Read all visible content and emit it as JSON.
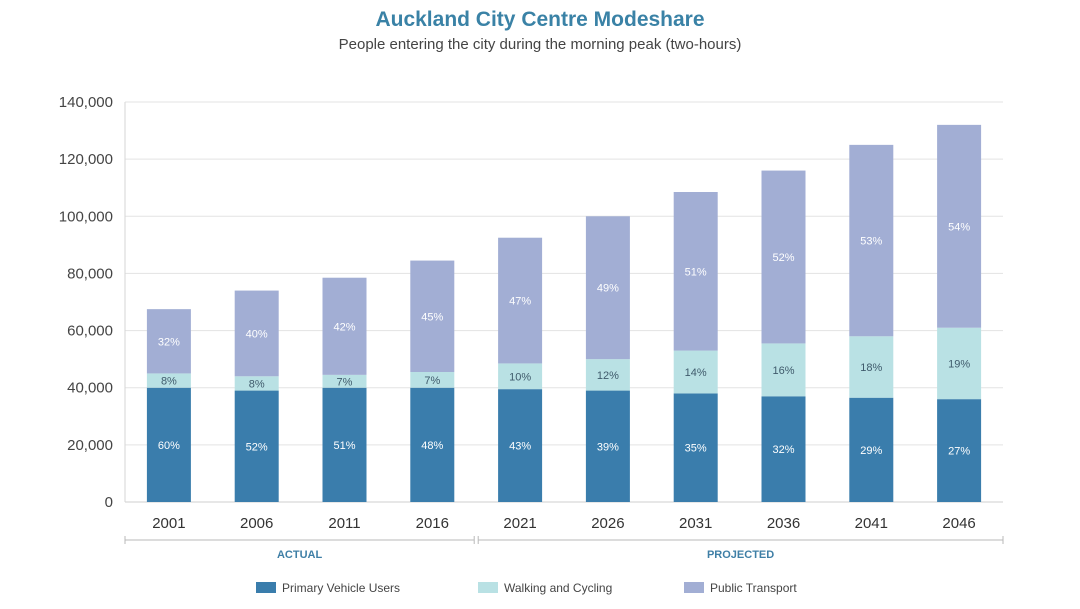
{
  "chart_data": {
    "type": "bar",
    "stacked": true,
    "title": "Auckland City Centre Modeshare",
    "subtitle": "People entering the city during the morning peak (two-hours)",
    "categories": [
      "2001",
      "2006",
      "2011",
      "2016",
      "2021",
      "2026",
      "2031",
      "2036",
      "2041",
      "2046"
    ],
    "ylim": [
      0,
      140000
    ],
    "yticks": [
      0,
      20000,
      40000,
      60000,
      80000,
      100000,
      120000,
      140000
    ],
    "ytick_labels": [
      "0",
      "20,000",
      "40,000",
      "60,000",
      "80,000",
      "100,000",
      "120,000",
      "140,000"
    ],
    "grid": true,
    "legend_position": "bottom",
    "series": [
      {
        "name": "Primary Vehicle Users",
        "color": "#3a7dac",
        "values": [
          40000,
          39000,
          40000,
          40000,
          39500,
          39000,
          38000,
          37000,
          36500,
          36000
        ],
        "labels": [
          "60%",
          "52%",
          "51%",
          "48%",
          "43%",
          "39%",
          "35%",
          "32%",
          "29%",
          "27%"
        ]
      },
      {
        "name": "Walking and Cycling",
        "color": "#b9e1e4",
        "values": [
          5000,
          5000,
          4500,
          5500,
          9000,
          11000,
          15000,
          18500,
          21500,
          25000
        ],
        "labels": [
          "8%",
          "8%",
          "7%",
          "7%",
          "10%",
          "12%",
          "14%",
          "16%",
          "18%",
          "19%"
        ]
      },
      {
        "name": "Public Transport",
        "color": "#a2aed4",
        "values": [
          22500,
          30000,
          34000,
          39000,
          44000,
          50000,
          55500,
          60500,
          67000,
          71000
        ],
        "labels": [
          "32%",
          "40%",
          "42%",
          "45%",
          "47%",
          "49%",
          "51%",
          "52%",
          "53%",
          "54%"
        ]
      }
    ],
    "groups": [
      {
        "label": "ACTUAL",
        "from": "2001",
        "to": "2016"
      },
      {
        "label": "PROJECTED",
        "from": "2021",
        "to": "2046"
      }
    ]
  }
}
